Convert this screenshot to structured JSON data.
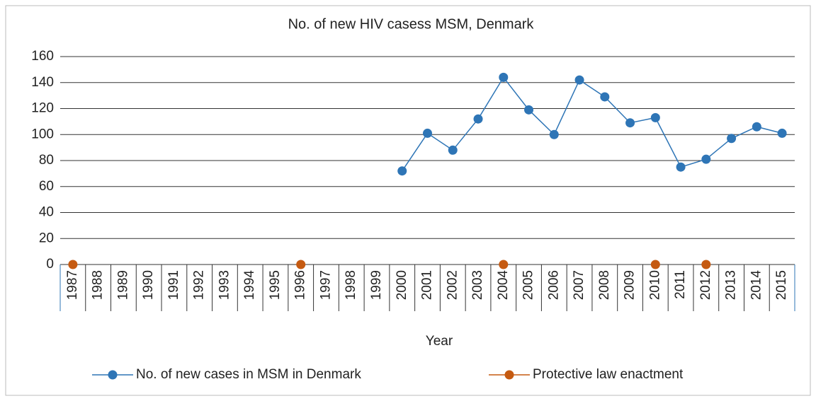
{
  "chart_data": {
    "type": "line",
    "title": "No. of new HIV casess MSM, Denmark",
    "x_label": "Year",
    "categories": [
      "1987",
      "1988",
      "1989",
      "1990",
      "1991",
      "1992",
      "1993",
      "1994",
      "1995",
      "1996",
      "1997",
      "1998",
      "1999",
      "2000",
      "2001",
      "2002",
      "2003",
      "2004",
      "2005",
      "2006",
      "2007",
      "2008",
      "2009",
      "2010",
      "2011",
      "2012",
      "2013",
      "2014",
      "2015"
    ],
    "series": [
      {
        "name": "No. of new cases in MSM in Denmark",
        "color": "#2e75b6",
        "values": [
          null,
          null,
          null,
          null,
          null,
          null,
          null,
          null,
          null,
          null,
          null,
          null,
          null,
          72,
          101,
          88,
          112,
          144,
          119,
          100,
          142,
          129,
          109,
          113,
          75,
          81,
          97,
          106,
          101
        ]
      },
      {
        "name": "Protective law enactment",
        "color": "#c55a11",
        "values": [
          0,
          null,
          null,
          null,
          null,
          null,
          null,
          null,
          null,
          0,
          null,
          null,
          null,
          null,
          null,
          null,
          null,
          0,
          null,
          null,
          null,
          null,
          null,
          0,
          null,
          0,
          null,
          null,
          null
        ]
      }
    ],
    "ylim": [
      0,
      160
    ],
    "yticks": [
      0,
      20,
      40,
      60,
      80,
      100,
      120,
      140,
      160
    ],
    "grid": true,
    "legend": "bottom"
  }
}
